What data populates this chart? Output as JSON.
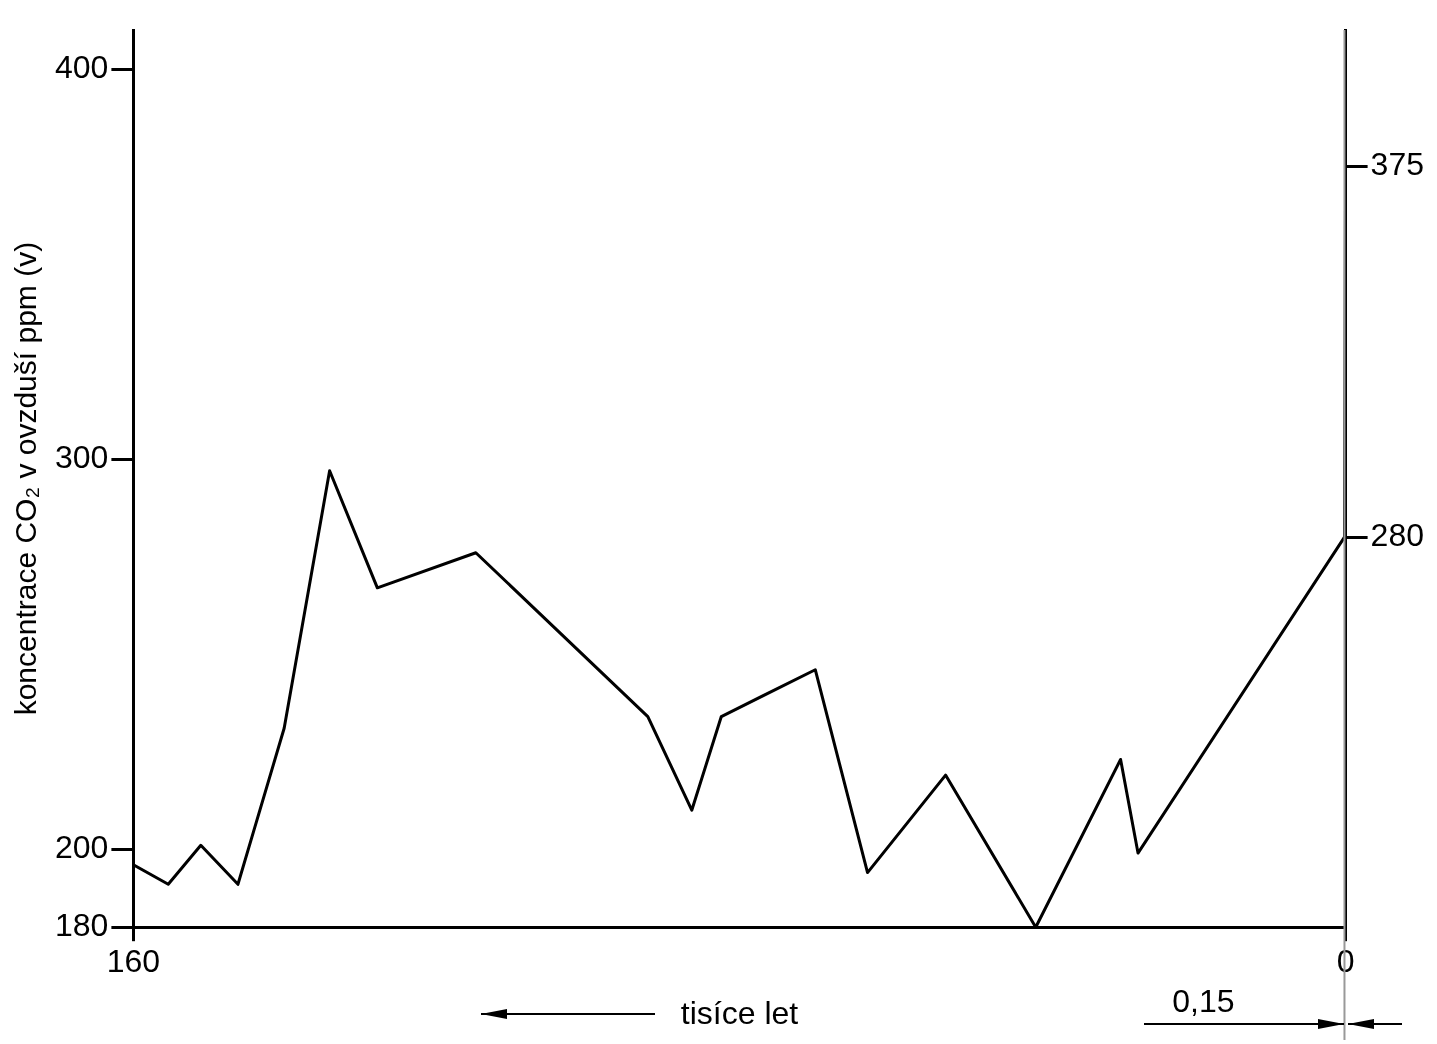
{
  "chart_data": {
    "type": "line",
    "xlabel": "tisíce let",
    "ylabel": "koncentrace CO₂ v ovzduší ppm (v)",
    "x": [
      160,
      155.4,
      151.1,
      146.2,
      140.1,
      134.1,
      127.8,
      114.8,
      92.1,
      86.3,
      82.4,
      70.0,
      63.1,
      52.8,
      40.9,
      29.7,
      27.4,
      0.15,
      0
    ],
    "series": [
      {
        "color": "#000000",
        "values": [
          196,
          191,
          201,
          191,
          231,
          297,
          267,
          276,
          234,
          210,
          234,
          246,
          194,
          219,
          180,
          223,
          199,
          280,
          375
        ]
      }
    ],
    "xlim": [
      160,
      0
    ],
    "xticks": [
      160,
      0
    ],
    "ylim": [
      180,
      410
    ],
    "yticks": [
      180,
      200,
      300,
      400
    ],
    "y2lim": [
      180,
      410
    ],
    "y2ticks": [
      280,
      375
    ],
    "ref_lines": [
      {
        "axis": "x",
        "value": 0.15,
        "label": "0,15",
        "color": "#999999"
      }
    ],
    "grid": false,
    "legend": false,
    "marker": "none",
    "line_style": "solid"
  }
}
